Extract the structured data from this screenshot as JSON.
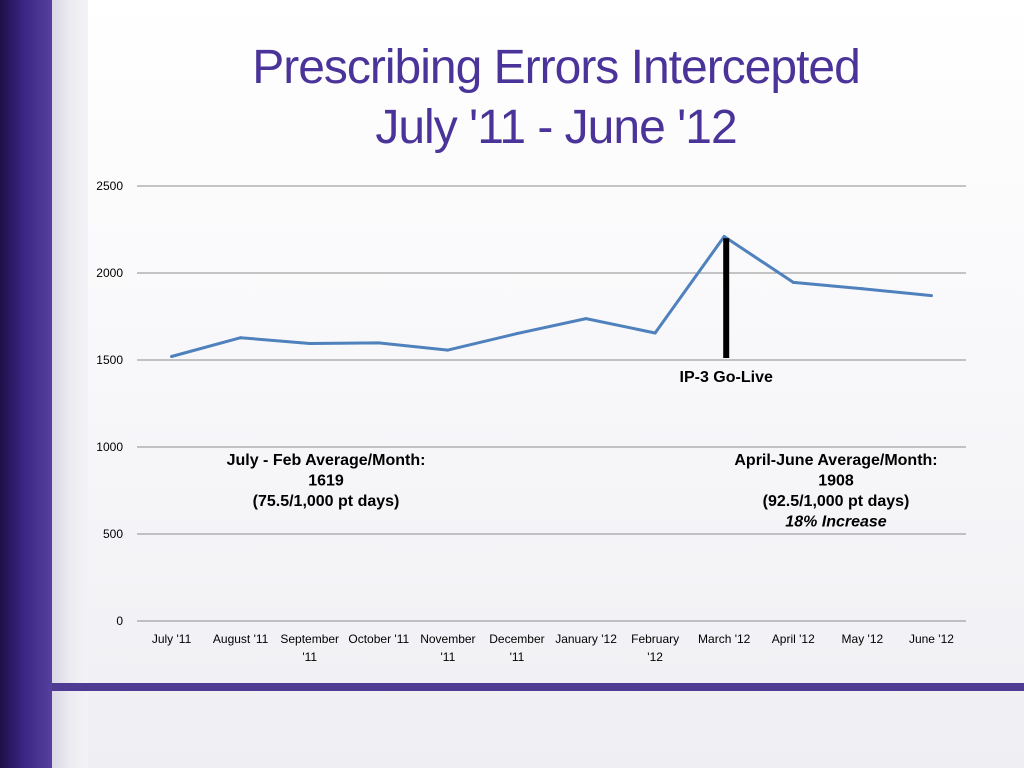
{
  "slide": {
    "title_line1": "Prescribing Errors Intercepted",
    "title_line2": "July '11 - June '12",
    "colors": {
      "title": "#4b3499",
      "accent_bar": "#4f3b94",
      "series": "#4f81bd"
    }
  },
  "chart_data": {
    "type": "line",
    "title": "Prescribing Errors Intercepted July '11 - June '12",
    "xlabel": "",
    "ylabel": "",
    "ylim": [
      0,
      2500
    ],
    "yticks": [
      0,
      500,
      1000,
      1500,
      2000,
      2500
    ],
    "grid": true,
    "categories": [
      [
        "July '11"
      ],
      [
        "August '11"
      ],
      [
        "September",
        "'11"
      ],
      [
        "October '11"
      ],
      [
        "November",
        "'11"
      ],
      [
        "December",
        "'11"
      ],
      [
        "January '12"
      ],
      [
        "February",
        "'12"
      ],
      [
        "March '12"
      ],
      [
        "April '12"
      ],
      [
        "May '12"
      ],
      [
        "June '12"
      ]
    ],
    "series": [
      {
        "values": [
          1520,
          1628,
          1595,
          1598,
          1557,
          1652,
          1738,
          1655,
          2210,
          1946,
          1910,
          1870
        ]
      }
    ],
    "golive_marker": {
      "category_index": 8,
      "y_from": 1500,
      "y_to": 2200,
      "label": "IP-3 Go-Live"
    },
    "annotations": {
      "left": [
        "July - Feb Average/Month:",
        "1619",
        "(75.5/1,000 pt days)"
      ],
      "right": [
        "April-June Average/Month:",
        "1908",
        "(92.5/1,000 pt days)",
        "18% Increase"
      ]
    }
  }
}
